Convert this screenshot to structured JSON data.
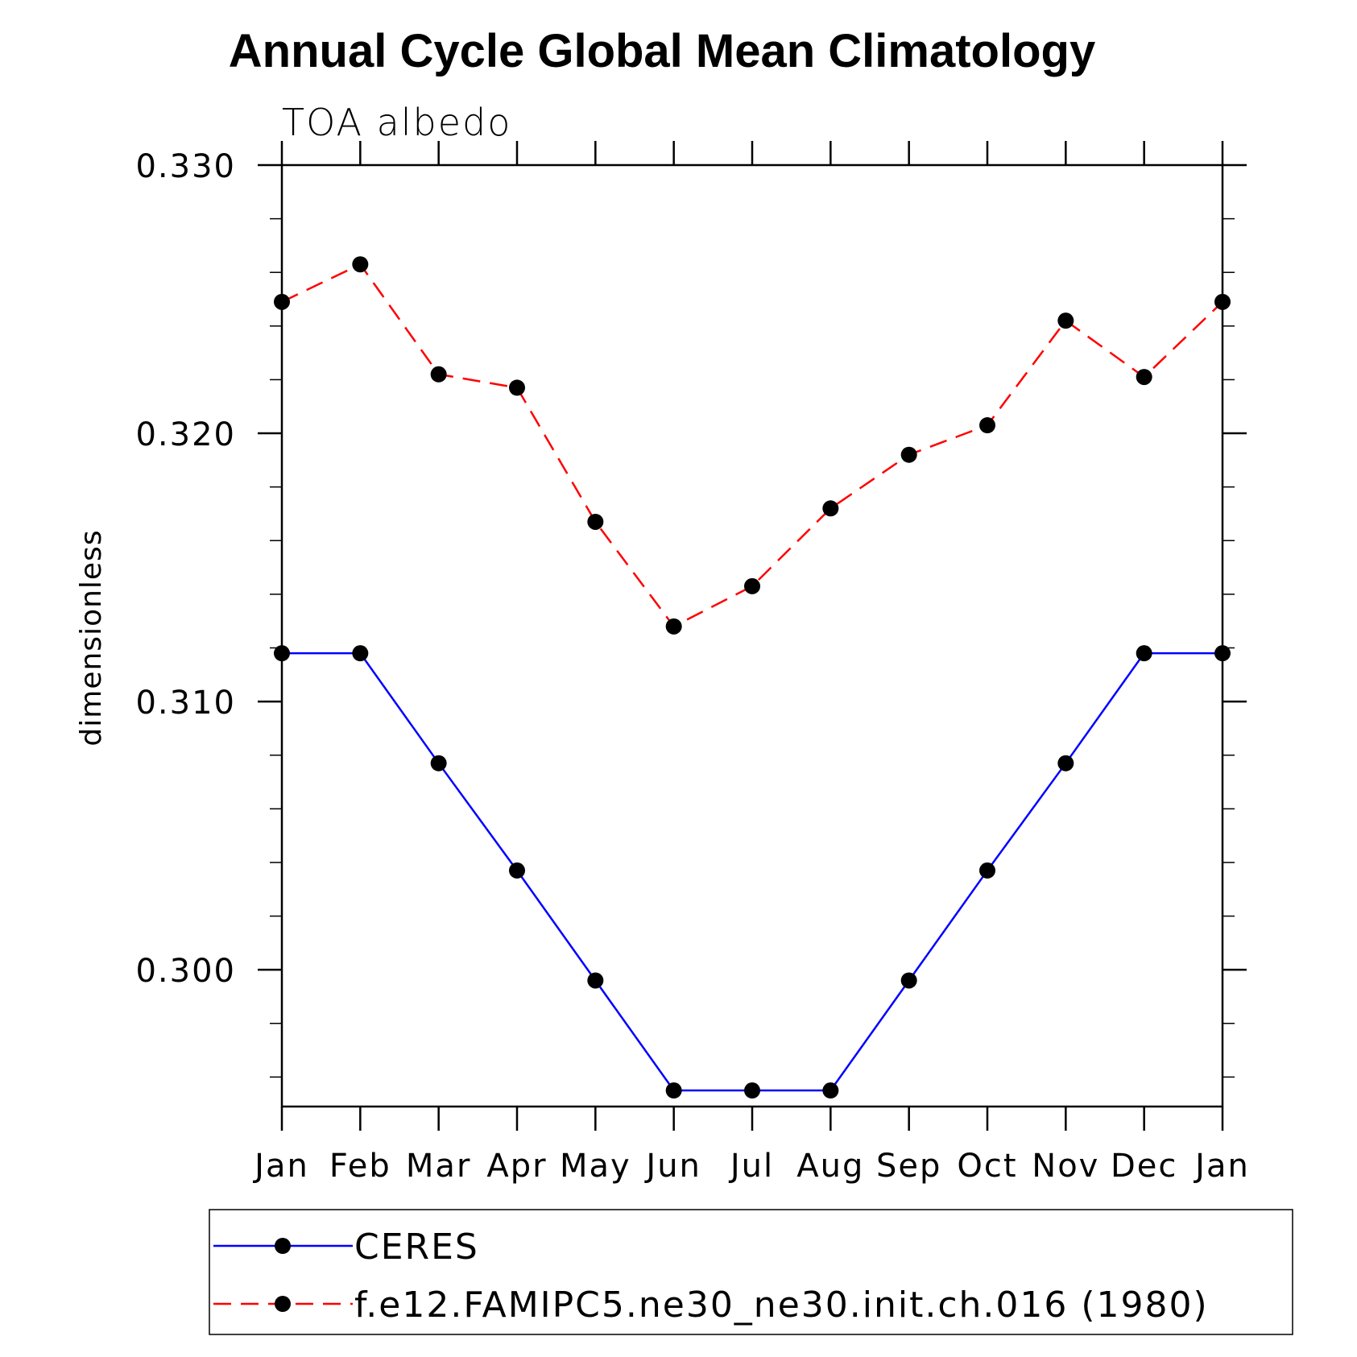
{
  "chart_data": {
    "type": "line",
    "title": "Annual Cycle Global Mean Climatology",
    "subtitle": "TOA albedo",
    "xlabel": "",
    "ylabel": "dimensionless",
    "categories": [
      "Jan",
      "Feb",
      "Mar",
      "Apr",
      "May",
      "Jun",
      "Jul",
      "Aug",
      "Sep",
      "Oct",
      "Nov",
      "Dec",
      "Jan"
    ],
    "ylim": [
      0.2949,
      0.33
    ],
    "yticks": [
      0.3,
      0.31,
      0.32,
      0.33
    ],
    "ytick_labels": [
      "0.300",
      "0.310",
      "0.320",
      "0.330"
    ],
    "y_minor_step": 0.002,
    "legend_position": "bottom",
    "series": [
      {
        "name": "CERES",
        "color": "#0000ff",
        "dash": "solid",
        "marker": "filled-circle",
        "values": [
          0.3118,
          0.3118,
          0.3077,
          0.3037,
          0.2996,
          0.2955,
          0.2955,
          0.2955,
          0.2996,
          0.3037,
          0.3077,
          0.3118,
          0.3118
        ]
      },
      {
        "name": "f.e12.FAMIPC5.ne30_ne30.init.ch.016 (1980)",
        "color": "#ff0000",
        "dash": "dashed",
        "marker": "filled-circle",
        "values": [
          0.3249,
          0.3263,
          0.3222,
          0.3217,
          0.3167,
          0.3128,
          0.3143,
          0.3172,
          0.3192,
          0.3203,
          0.3242,
          0.3221,
          0.3249
        ]
      }
    ]
  }
}
